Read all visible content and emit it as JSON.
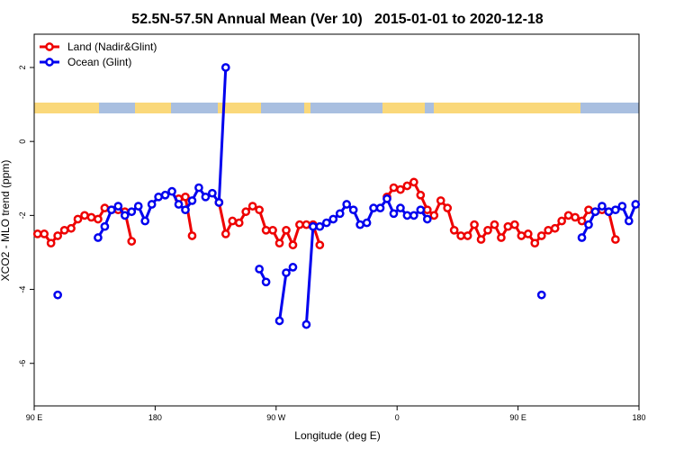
{
  "chart_data": {
    "type": "line",
    "title": "52.5N-57.5N Annual Mean (Ver 10)   2015-01-01 to 2020-12-18",
    "xlabel": "Longitude (deg E)",
    "ylabel": "XCO2 - MLO trend (ppm)",
    "legend": "top-left",
    "x": [
      92.5,
      97.5,
      102.5,
      107.5,
      112.5,
      117.5,
      122.5,
      127.5,
      132.5,
      137.5,
      142.5,
      147.5,
      152.5,
      157.5,
      162.5,
      167.5,
      172.5,
      177.5,
      182.5,
      187.5,
      192.5,
      197.5,
      202.5,
      207.5,
      212.5,
      217.5,
      222.5,
      227.5,
      232.5,
      237.5,
      242.5,
      247.5,
      252.5,
      257.5,
      262.5,
      267.5,
      272.5,
      277.5,
      282.5,
      287.5,
      292.5,
      297.5,
      302.5,
      307.5,
      312.5,
      317.5,
      322.5,
      327.5,
      332.5,
      337.5,
      342.5,
      347.5,
      352.5,
      357.5,
      362.5,
      367.5,
      372.5,
      377.5,
      382.5,
      387.5,
      392.5,
      397.5,
      402.5,
      407.5,
      412.5,
      417.5,
      422.5,
      427.5,
      432.5,
      437.5,
      442.5,
      447.5,
      452.5,
      457.5,
      462.5,
      467.5,
      472.5,
      477.5,
      482.5,
      487.5,
      492.5,
      497.5,
      502.5,
      507.5,
      512.5,
      517.5,
      522.5,
      527.5,
      532.5,
      537.5
    ],
    "series": [
      {
        "name": "Land (Nadir&Glint)",
        "color": "#ee0000",
        "values": [
          -2.5,
          -2.5,
          -2.75,
          -2.55,
          -2.4,
          -2.35,
          -2.1,
          -2.0,
          -2.05,
          -2.1,
          -1.8,
          -1.85,
          -1.85,
          -1.9,
          -2.7,
          null,
          null,
          null,
          null,
          null,
          null,
          -1.55,
          -1.5,
          -2.55,
          null,
          null,
          null,
          -1.65,
          -2.5,
          -2.15,
          -2.2,
          -1.9,
          -1.75,
          -1.85,
          -2.4,
          -2.4,
          -2.75,
          -2.4,
          -2.8,
          -2.25,
          -2.25,
          -2.25,
          -2.8,
          null,
          null,
          null,
          null,
          null,
          null,
          null,
          null,
          null,
          -1.5,
          -1.25,
          -1.3,
          -1.2,
          -1.1,
          -1.45,
          -1.85,
          -2.0,
          -1.6,
          -1.8,
          -2.4,
          -2.55,
          -2.55,
          -2.25,
          -2.65,
          -2.4,
          -2.25,
          -2.6,
          -2.3,
          -2.25,
          -2.55,
          -2.5,
          -2.75,
          -2.55,
          -2.4,
          -2.35,
          -2.15,
          -2.0,
          -2.05,
          -2.15,
          -1.85,
          -1.9,
          -1.85,
          -1.9,
          -2.65,
          null,
          null,
          null
        ]
      },
      {
        "name": "Ocean (Glint)",
        "color": "#0000ee",
        "values": [
          null,
          null,
          null,
          -4.15,
          null,
          null,
          null,
          null,
          null,
          -2.6,
          -2.3,
          -1.85,
          -1.75,
          -2.0,
          -1.9,
          -1.75,
          -2.15,
          -1.7,
          -1.5,
          -1.45,
          -1.35,
          -1.7,
          -1.85,
          -1.6,
          -1.25,
          -1.5,
          -1.4,
          -1.65,
          2.0,
          null,
          null,
          null,
          null,
          -3.45,
          -3.8,
          null,
          -4.85,
          -3.55,
          -3.4,
          null,
          -4.95,
          -2.3,
          -2.3,
          -2.2,
          -2.1,
          -1.95,
          -1.7,
          -1.85,
          -2.25,
          -2.2,
          -1.8,
          -1.8,
          -1.55,
          -1.95,
          -1.8,
          -2.0,
          -2.0,
          -1.85,
          -2.1,
          null,
          null,
          null,
          null,
          null,
          null,
          null,
          null,
          null,
          null,
          null,
          null,
          null,
          null,
          null,
          null,
          -4.15,
          null,
          null,
          null,
          null,
          null,
          -2.6,
          -2.25,
          -1.9,
          -1.75,
          -1.9,
          -1.85,
          -1.75,
          -2.15,
          -1.7
        ]
      }
    ],
    "xlim": [
      90,
      540
    ],
    "xticks": [
      {
        "value": 90,
        "label": "90 E"
      },
      180,
      {
        "value": 270,
        "label": "90 W"
      },
      {
        "value": 360,
        "label": "0"
      },
      {
        "value": 450,
        "label": "90 E"
      },
      {
        "value": 540,
        "label": "180"
      }
    ],
    "ylim": [
      -7.15,
      2.9
    ],
    "yticks": [
      -6,
      -4,
      -2,
      0,
      2
    ]
  }
}
